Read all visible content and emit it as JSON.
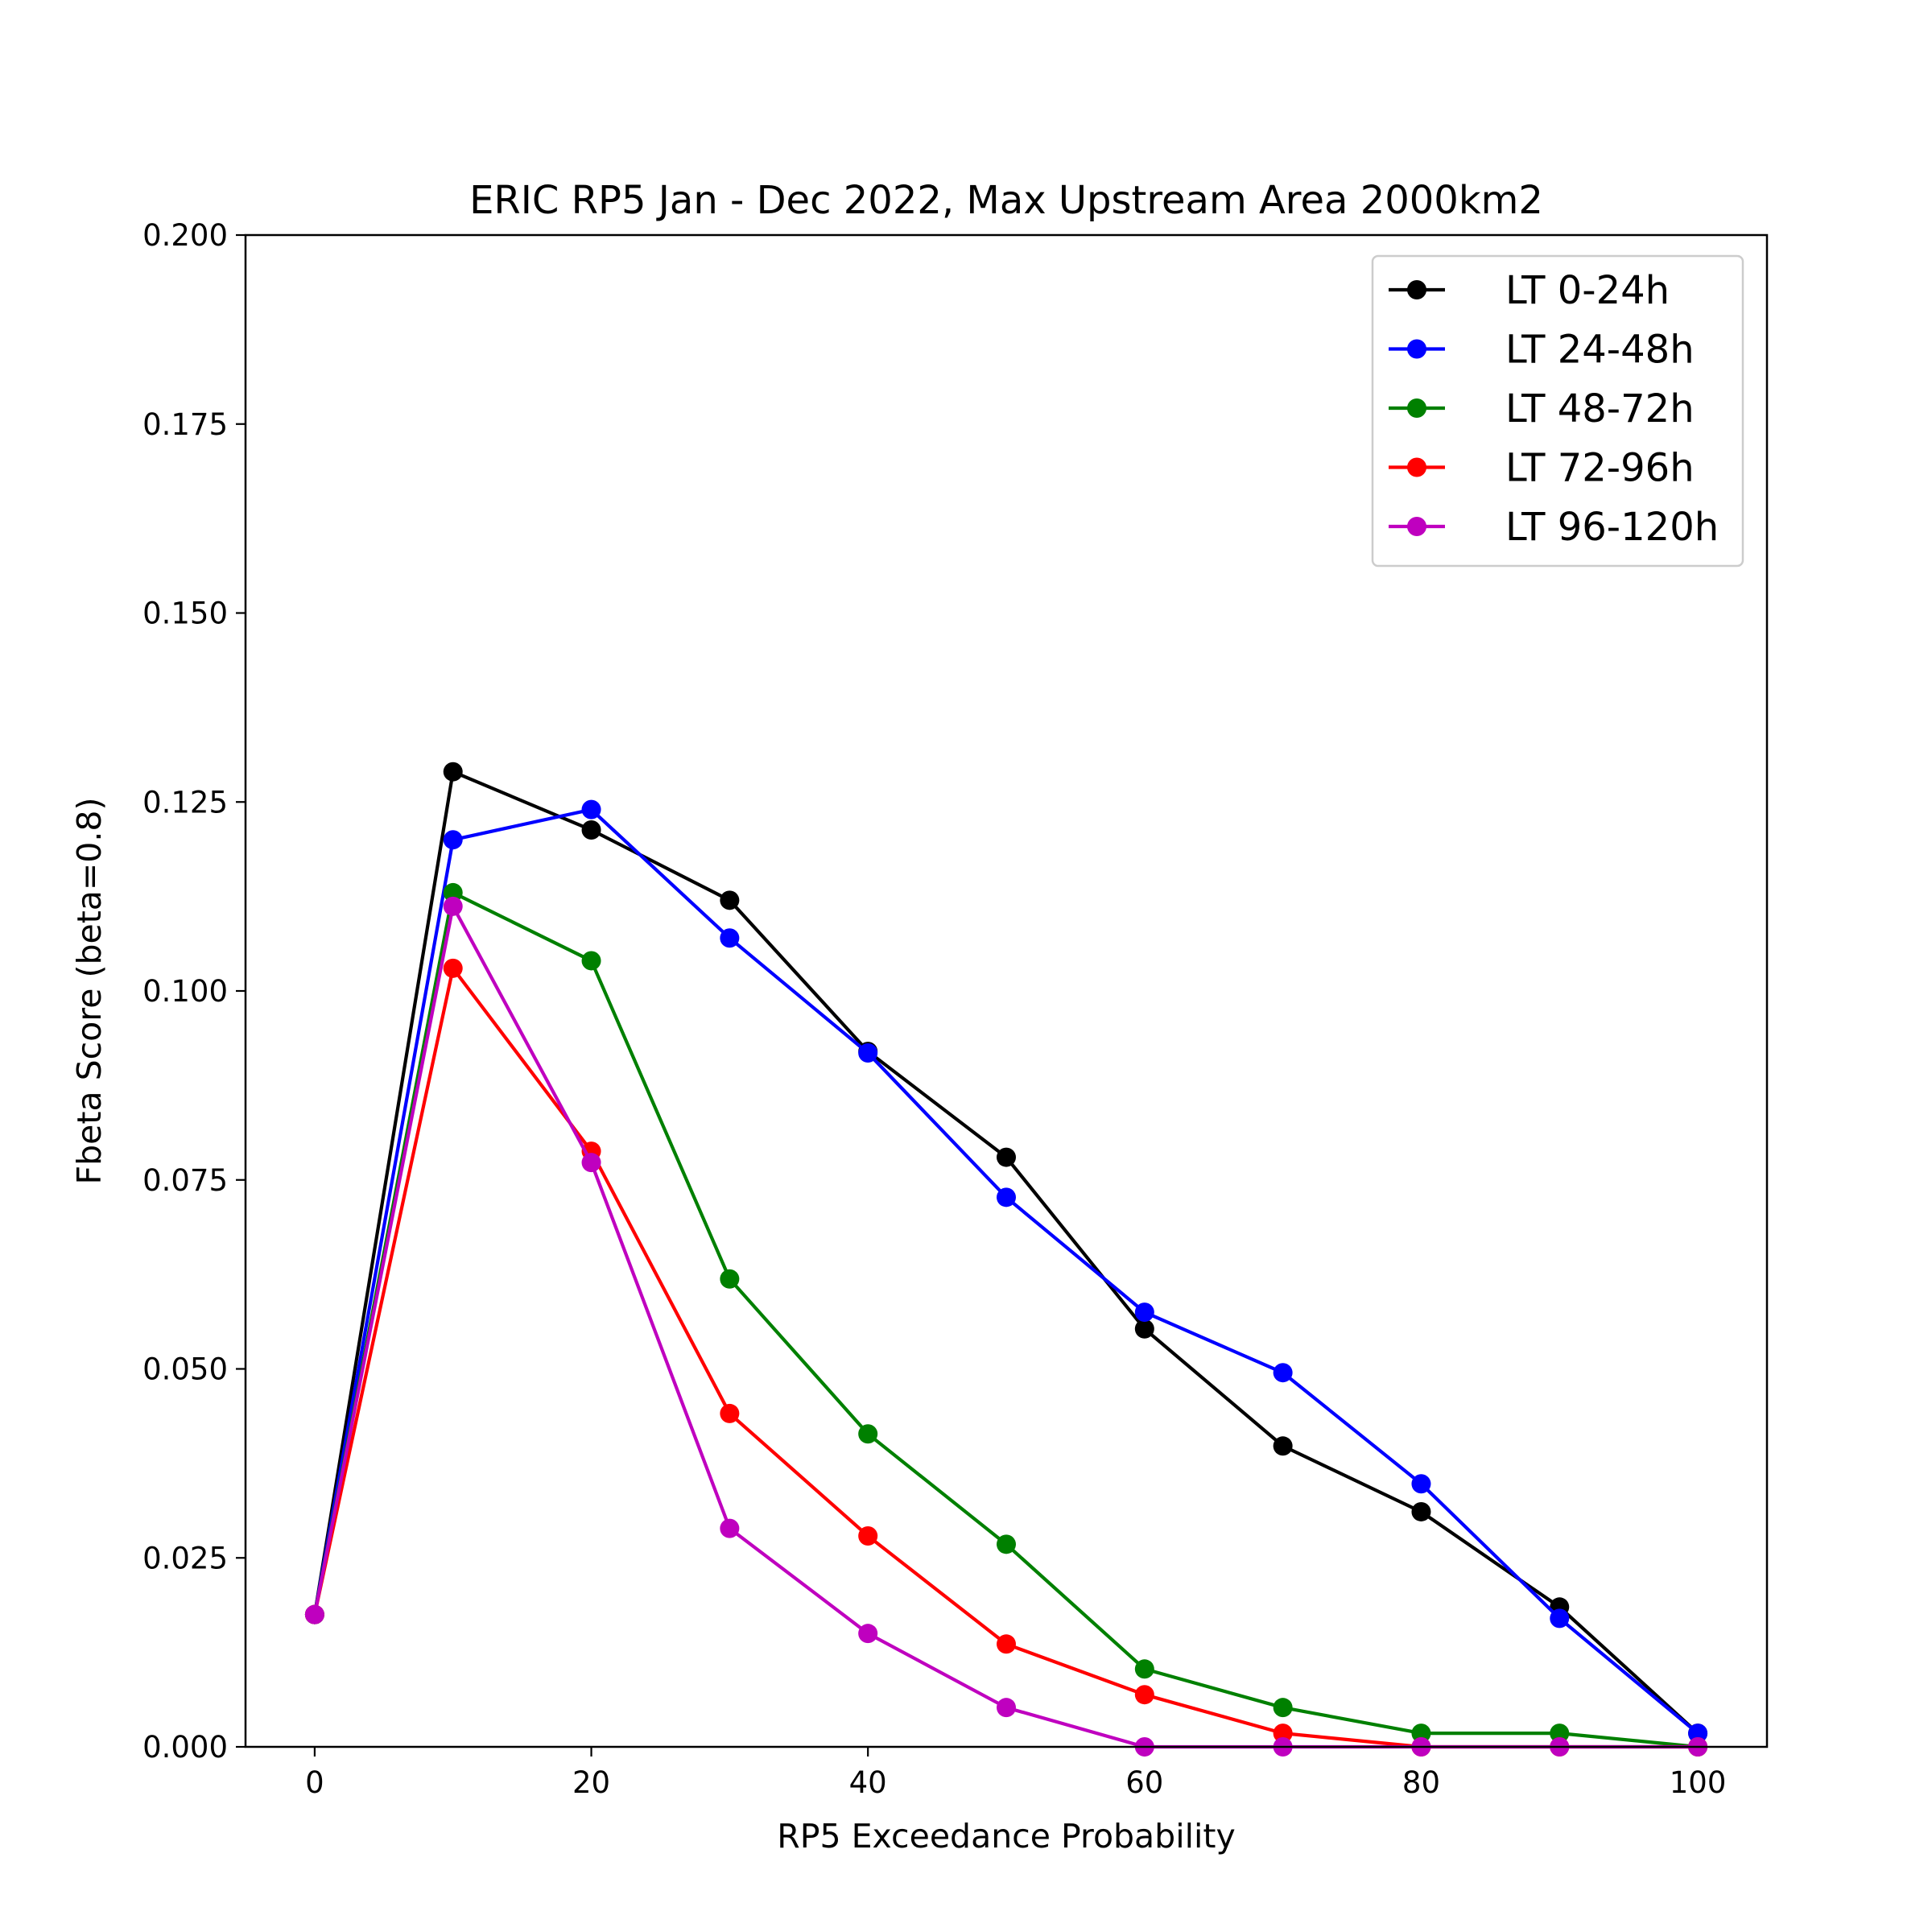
{
  "chart_data": {
    "type": "line",
    "title": "ERIC  RP5 Jan - Dec 2022, Max Upstream Area 2000km2",
    "xlabel": "RP5 Exceedance Probability",
    "ylabel": "Fbeta Score (beta=0.8)",
    "xlim": [
      -5,
      105
    ],
    "ylim": [
      0,
      0.2
    ],
    "xticks": [
      0,
      20,
      40,
      60,
      80,
      100
    ],
    "xtick_labels": [
      "0",
      "20",
      "40",
      "60",
      "80",
      "100"
    ],
    "yticks": [
      0,
      0.025,
      0.05,
      0.075,
      0.1,
      0.125,
      0.15,
      0.175,
      0.2
    ],
    "ytick_labels": [
      "0.000",
      "0.025",
      "0.050",
      "0.075",
      "0.100",
      "0.125",
      "0.150",
      "0.175",
      "0.200"
    ],
    "grid": false,
    "legend_position": "top-right",
    "x": [
      0,
      10,
      20,
      30,
      40,
      50,
      60,
      70,
      80,
      90,
      100
    ],
    "series": [
      {
        "name": "LT 0-24h",
        "color": "#000000",
        "values": [
          0.0175,
          0.129,
          0.1213,
          0.112,
          0.092,
          0.078,
          0.0553,
          0.0398,
          0.0311,
          0.0185,
          0.0018
        ]
      },
      {
        "name": "LT 24-48h",
        "color": "#0000ff",
        "values": [
          0.0175,
          0.12,
          0.124,
          0.107,
          0.0918,
          0.0727,
          0.0575,
          0.0495,
          0.0348,
          0.017,
          0.0018
        ]
      },
      {
        "name": "LT 48-72h",
        "color": "#008000",
        "values": [
          0.0175,
          0.113,
          0.104,
          0.0619,
          0.0414,
          0.0268,
          0.0103,
          0.0052,
          0.0018,
          0.0018,
          0.0
        ]
      },
      {
        "name": "LT 72-96h",
        "color": "#ff0000",
        "values": [
          0.0175,
          0.103,
          0.0788,
          0.0441,
          0.0279,
          0.0136,
          0.0069,
          0.0018,
          0.0,
          0.0,
          0.0
        ]
      },
      {
        "name": "LT 96-120h",
        "color": "#bf00bf",
        "values": [
          0.0175,
          0.1112,
          0.0773,
          0.0289,
          0.015,
          0.0052,
          0.0,
          0.0,
          0.0,
          0.0,
          0.0
        ]
      }
    ]
  }
}
